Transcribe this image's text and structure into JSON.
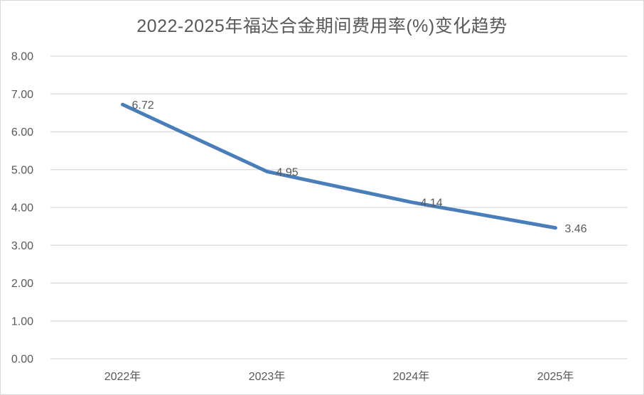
{
  "chart_data": {
    "type": "line",
    "title": "2022-2025年福达合金期间费用率(%)变化趋势",
    "categories": [
      "2022年",
      "2023年",
      "2024年",
      "2025年"
    ],
    "values": [
      6.72,
      4.95,
      4.14,
      3.46
    ],
    "data_labels": [
      "6.72",
      "4.95",
      "4.14",
      "3.46"
    ],
    "y_ticks": [
      "8.00",
      "7.00",
      "6.00",
      "5.00",
      "4.00",
      "3.00",
      "2.00",
      "1.00",
      "0.00"
    ],
    "ylim": [
      0,
      8
    ],
    "y_step": 1,
    "xlabel": "",
    "ylabel": "",
    "grid": true,
    "legend_position": "none",
    "colors": {
      "line": "#4A7EBB",
      "grid": "#D9D9D9",
      "axis_text": "#595959",
      "title_text": "#595959",
      "data_label_text": "#595959",
      "border": "#D9D9D9",
      "background": "#FFFFFF"
    }
  }
}
